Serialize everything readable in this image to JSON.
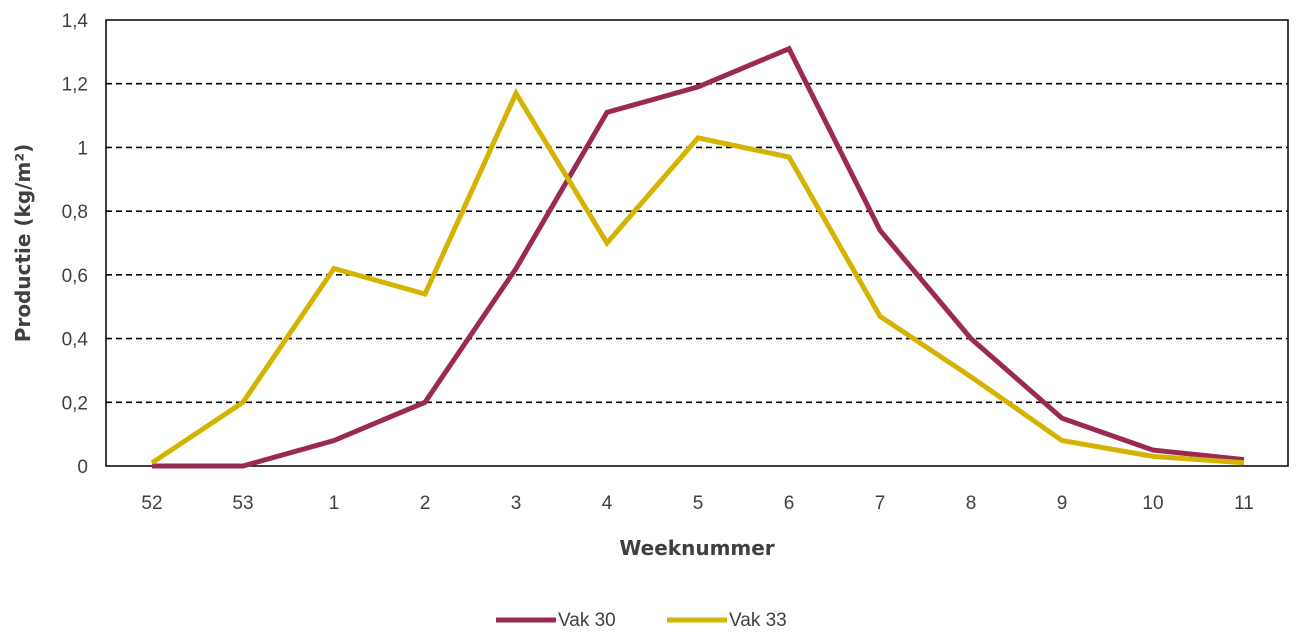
{
  "chart_data": {
    "type": "line",
    "title": "",
    "xlabel": "Weeknummer",
    "ylabel": "Productie (kg/m²)",
    "categories": [
      "52",
      "53",
      "1",
      "2",
      "3",
      "4",
      "5",
      "6",
      "7",
      "8",
      "9",
      "10",
      "11"
    ],
    "ylim": [
      0,
      1.4
    ],
    "yticks": [
      0,
      0.2,
      0.4,
      0.6,
      0.8,
      1,
      1.2,
      1.4
    ],
    "ytick_labels": [
      "0",
      "0,2",
      "0,4",
      "0,6",
      "0,8",
      "1",
      "1,2",
      "1,4"
    ],
    "grid": "horizontal dashed",
    "legend_position": "bottom",
    "series": [
      {
        "name": "Vak 30",
        "color": "#9b2a52",
        "values": [
          0,
          0,
          0.08,
          0.2,
          0.62,
          1.11,
          1.19,
          1.31,
          0.74,
          0.4,
          0.15,
          0.05,
          0.02
        ]
      },
      {
        "name": "Vak 33",
        "color": "#d4b400",
        "values": [
          0.01,
          0.2,
          0.62,
          0.54,
          1.17,
          0.7,
          1.03,
          0.97,
          0.47,
          0.28,
          0.08,
          0.03,
          0.01
        ]
      }
    ]
  }
}
